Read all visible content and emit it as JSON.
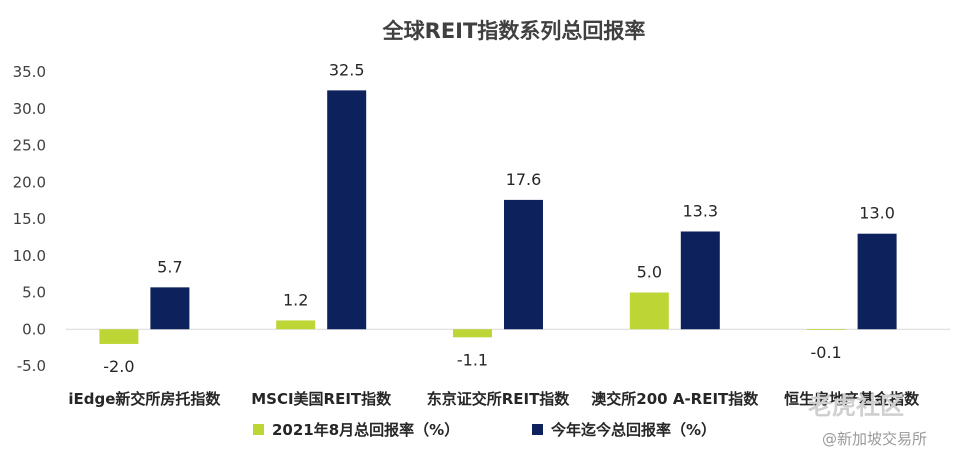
{
  "chart_data": {
    "type": "bar",
    "title": "全球REIT指数系列总回报率",
    "categories": [
      "iEdge新交所房托指数",
      "MSCI美国REIT指数",
      "东京证交所REIT指数",
      "澳交所200 A-REIT指数",
      "恒生房地产基金指数"
    ],
    "series": [
      {
        "name": "2021年8月总回报率（%）",
        "color": "#bdd636",
        "values": [
          -2.0,
          1.2,
          -1.1,
          5.0,
          -0.1
        ],
        "labels": [
          "-2.0",
          "1.2",
          "-1.1",
          "5.0",
          "-0.1"
        ]
      },
      {
        "name": "今年迄今总回报率（%）",
        "color": "#0d215c",
        "values": [
          5.7,
          32.5,
          17.6,
          13.3,
          13.0
        ],
        "labels": [
          "5.7",
          "32.5",
          "17.6",
          "13.3",
          "13.0"
        ]
      }
    ],
    "ylim": [
      -5,
      35
    ],
    "yticks": [
      "-5.0",
      "0.0",
      "5.0",
      "10.0",
      "15.0",
      "20.0",
      "25.0",
      "30.0",
      "35.0"
    ],
    "grid": false,
    "legend_position": "bottom"
  },
  "watermark": {
    "brand": "老虎社区",
    "handle": "@新加坡交易所"
  }
}
